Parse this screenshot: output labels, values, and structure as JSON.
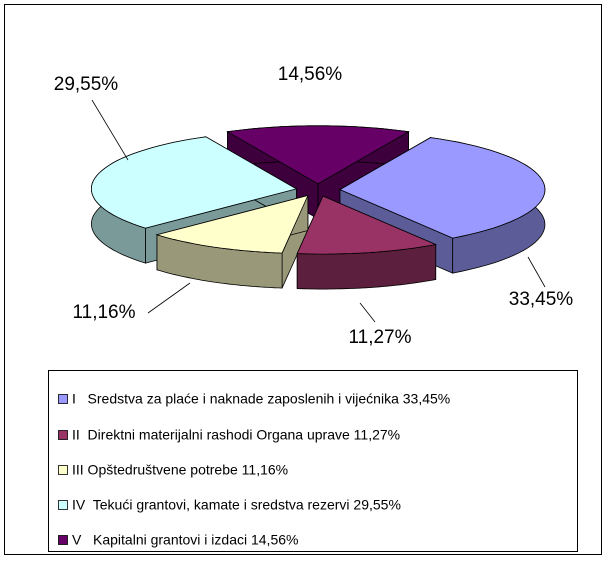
{
  "chart_data": {
    "type": "pie",
    "categories": [
      "I   Sredstva za plaće i naknade zaposlenih i vijećnika 33,45%",
      "II  Direktni materijalni rashodi Organa uprave 11,27%",
      "III Opštedruštvene potrebe 11,16%",
      "IV  Tekući grantovi, kamate i sredstva rezervi 29,55%",
      "V   Kapitalni grantovi i izdaci 14,56%"
    ],
    "values": [
      33.45,
      11.27,
      11.16,
      29.55,
      14.56
    ],
    "value_labels": [
      "33,45%",
      "11,27%",
      "11,16%",
      "29,55%",
      "14,56%"
    ],
    "colors": [
      "#9999ff",
      "#993366",
      "#ffffcc",
      "#ccffff",
      "#660066"
    ],
    "legend": "bottom"
  }
}
